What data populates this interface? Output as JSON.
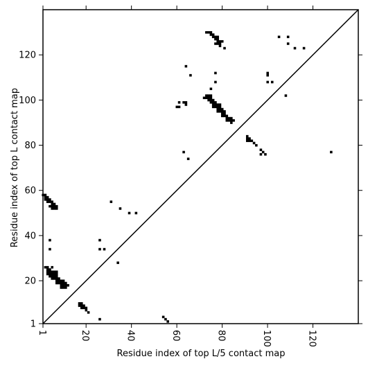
{
  "chart_data": {
    "type": "scatter",
    "xlabel": "Residue index of top L/5 contact map",
    "ylabel": "Residue index of top L contact map",
    "xlim": [
      1,
      140
    ],
    "ylim": [
      1,
      140
    ],
    "xticks": [
      1,
      20,
      40,
      60,
      80,
      100,
      120
    ],
    "yticks": [
      1,
      20,
      40,
      60,
      80,
      100,
      120
    ],
    "x_tick_labels": [
      "1",
      "20",
      "40",
      "60",
      "80",
      "100",
      "120"
    ],
    "y_tick_labels": [
      "1",
      "20",
      "40",
      "60",
      "80",
      "100",
      "120"
    ],
    "grid": false,
    "diagonal": true,
    "marker_color": "#000000",
    "points": [
      [
        1,
        58
      ],
      [
        2,
        58
      ],
      [
        2,
        57
      ],
      [
        3,
        57
      ],
      [
        2,
        56
      ],
      [
        3,
        56
      ],
      [
        4,
        56
      ],
      [
        3,
        55
      ],
      [
        4,
        55
      ],
      [
        5,
        55
      ],
      [
        5,
        54
      ],
      [
        6,
        54
      ],
      [
        4,
        53
      ],
      [
        5,
        53
      ],
      [
        6,
        53
      ],
      [
        7,
        53
      ],
      [
        5,
        52
      ],
      [
        6,
        52
      ],
      [
        7,
        52
      ],
      [
        4,
        38
      ],
      [
        4,
        34
      ],
      [
        2,
        26
      ],
      [
        3,
        26
      ],
      [
        3,
        25
      ],
      [
        4,
        25
      ],
      [
        5,
        26
      ],
      [
        3,
        24
      ],
      [
        4,
        24
      ],
      [
        5,
        24
      ],
      [
        6,
        24
      ],
      [
        7,
        24
      ],
      [
        3,
        23
      ],
      [
        4,
        23
      ],
      [
        5,
        23
      ],
      [
        6,
        23
      ],
      [
        7,
        23
      ],
      [
        4,
        22
      ],
      [
        5,
        22
      ],
      [
        6,
        22
      ],
      [
        7,
        22
      ],
      [
        5,
        21
      ],
      [
        6,
        21
      ],
      [
        7,
        21
      ],
      [
        8,
        21
      ],
      [
        7,
        20
      ],
      [
        8,
        20
      ],
      [
        9,
        20
      ],
      [
        10,
        20
      ],
      [
        7,
        19
      ],
      [
        8,
        19
      ],
      [
        9,
        19
      ],
      [
        10,
        19
      ],
      [
        11,
        19
      ],
      [
        9,
        18
      ],
      [
        10,
        18
      ],
      [
        11,
        18
      ],
      [
        12,
        18
      ],
      [
        9,
        17
      ],
      [
        10,
        17
      ],
      [
        11,
        17
      ],
      [
        17,
        10
      ],
      [
        18,
        10
      ],
      [
        17,
        9
      ],
      [
        18,
        9
      ],
      [
        19,
        9
      ],
      [
        18,
        8
      ],
      [
        19,
        8
      ],
      [
        20,
        8
      ],
      [
        20,
        7
      ],
      [
        21,
        6
      ],
      [
        26,
        38
      ],
      [
        26,
        34
      ],
      [
        28,
        34
      ],
      [
        31,
        55
      ],
      [
        35,
        52
      ],
      [
        39,
        50
      ],
      [
        42,
        50
      ],
      [
        34,
        28
      ],
      [
        26,
        3
      ],
      [
        54,
        4
      ],
      [
        55,
        3
      ],
      [
        56,
        2
      ],
      [
        60,
        97
      ],
      [
        61,
        97
      ],
      [
        61,
        99
      ],
      [
        63,
        99
      ],
      [
        64,
        99
      ],
      [
        64,
        98
      ],
      [
        64,
        115
      ],
      [
        66,
        111
      ],
      [
        63,
        77
      ],
      [
        65,
        74
      ],
      [
        72,
        101
      ],
      [
        73,
        101
      ],
      [
        73,
        102
      ],
      [
        74,
        102
      ],
      [
        75,
        102
      ],
      [
        74,
        101
      ],
      [
        75,
        101
      ],
      [
        75,
        100
      ],
      [
        76,
        100
      ],
      [
        74,
        100
      ],
      [
        75,
        99
      ],
      [
        76,
        99
      ],
      [
        77,
        99
      ],
      [
        76,
        98
      ],
      [
        77,
        98
      ],
      [
        78,
        98
      ],
      [
        79,
        98
      ],
      [
        76,
        97
      ],
      [
        77,
        97
      ],
      [
        78,
        97
      ],
      [
        79,
        97
      ],
      [
        78,
        96
      ],
      [
        79,
        96
      ],
      [
        80,
        96
      ],
      [
        78,
        95
      ],
      [
        79,
        95
      ],
      [
        80,
        95
      ],
      [
        81,
        95
      ],
      [
        80,
        94
      ],
      [
        81,
        94
      ],
      [
        80,
        93
      ],
      [
        81,
        93
      ],
      [
        82,
        93
      ],
      [
        82,
        92
      ],
      [
        83,
        92
      ],
      [
        84,
        92
      ],
      [
        82,
        91
      ],
      [
        83,
        91
      ],
      [
        84,
        91
      ],
      [
        85,
        91
      ],
      [
        84,
        90
      ],
      [
        75,
        105
      ],
      [
        77,
        108
      ],
      [
        77,
        112
      ],
      [
        73,
        130
      ],
      [
        74,
        130
      ],
      [
        75,
        130
      ],
      [
        75,
        129
      ],
      [
        76,
        129
      ],
      [
        76,
        128
      ],
      [
        77,
        128
      ],
      [
        78,
        128
      ],
      [
        77,
        127
      ],
      [
        78,
        127
      ],
      [
        78,
        126
      ],
      [
        79,
        126
      ],
      [
        80,
        126
      ],
      [
        77,
        125
      ],
      [
        78,
        125
      ],
      [
        79,
        125
      ],
      [
        79,
        124
      ],
      [
        81,
        123
      ],
      [
        91,
        84
      ],
      [
        91,
        83
      ],
      [
        92,
        83
      ],
      [
        91,
        82
      ],
      [
        92,
        82
      ],
      [
        93,
        82
      ],
      [
        94,
        81
      ],
      [
        95,
        80
      ],
      [
        97,
        78
      ],
      [
        97,
        76
      ],
      [
        98,
        77
      ],
      [
        99,
        76
      ],
      [
        100,
        112
      ],
      [
        100,
        111
      ],
      [
        100,
        108
      ],
      [
        102,
        108
      ],
      [
        105,
        128
      ],
      [
        109,
        128
      ],
      [
        109,
        125
      ],
      [
        112,
        123
      ],
      [
        116,
        123
      ],
      [
        108,
        102
      ],
      [
        128,
        77
      ]
    ]
  }
}
